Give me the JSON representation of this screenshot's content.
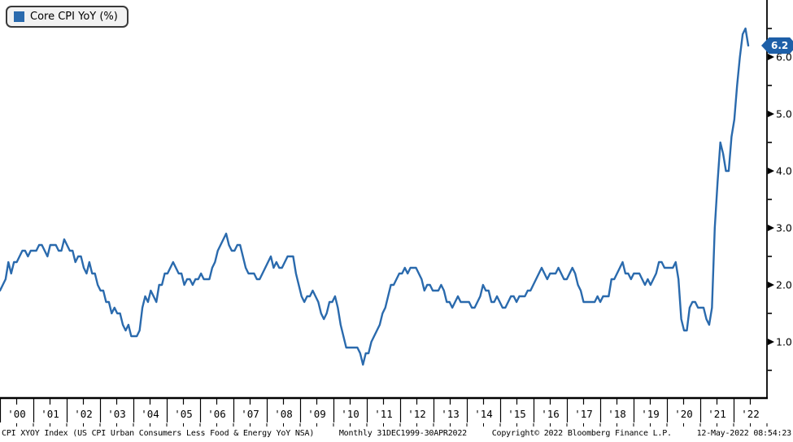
{
  "legend": {
    "label": "Core CPI YoY (%)"
  },
  "last_value_tag": {
    "value": "6.2"
  },
  "colors": {
    "line": "#2a6aad",
    "tag_bg": "#1d5fa8",
    "tag_text": "#ffffff",
    "axis": "#000000",
    "legend_bg": "#f2f2f2"
  },
  "y_axis": {
    "tick_labels": [
      "1.0",
      "2.0",
      "3.0",
      "4.0",
      "5.0",
      "6.0"
    ]
  },
  "x_axis": {
    "year_labels": [
      "'00",
      "'01",
      "'02",
      "'03",
      "'04",
      "'05",
      "'06",
      "'07",
      "'08",
      "'09",
      "'10",
      "'11",
      "'12",
      "'13",
      "'14",
      "'15",
      "'16",
      "'17",
      "'18",
      "'19",
      "'20",
      "'21",
      "'22"
    ]
  },
  "footer": {
    "instrument": "CPI XYOY Index (US CPI Urban Consumers Less Food & Energy YoY NSA)",
    "periodicity": "Monthly 31DEC1999-30APR2022",
    "copyright": "Copyright© 2022 Bloomberg Finance L.P.",
    "timestamp": "12-May-2022 08:54:23"
  },
  "chart_data": {
    "type": "line",
    "title": "Core CPI YoY (%)",
    "frequency": "monthly",
    "x_start": "Dec-1999",
    "x_end": "Apr-2022",
    "ylim": [
      0,
      7
    ],
    "y_ticks": [
      1,
      2,
      3,
      4,
      5,
      6
    ],
    "y_minor_step": 0.5,
    "grid": false,
    "legend_position": "top-left",
    "last_value": 6.2,
    "peak_value": 6.5,
    "series": [
      {
        "name": "Core CPI YoY (%)",
        "values": [
          1.9,
          2.0,
          2.1,
          2.4,
          2.2,
          2.4,
          2.4,
          2.5,
          2.6,
          2.6,
          2.5,
          2.6,
          2.6,
          2.6,
          2.7,
          2.7,
          2.6,
          2.5,
          2.7,
          2.7,
          2.7,
          2.6,
          2.6,
          2.8,
          2.7,
          2.6,
          2.6,
          2.4,
          2.5,
          2.5,
          2.3,
          2.2,
          2.4,
          2.2,
          2.2,
          2.0,
          1.9,
          1.9,
          1.7,
          1.7,
          1.5,
          1.6,
          1.5,
          1.5,
          1.3,
          1.2,
          1.3,
          1.1,
          1.1,
          1.1,
          1.2,
          1.6,
          1.8,
          1.7,
          1.9,
          1.8,
          1.7,
          2.0,
          2.0,
          2.2,
          2.2,
          2.3,
          2.4,
          2.3,
          2.2,
          2.2,
          2.0,
          2.1,
          2.1,
          2.0,
          2.1,
          2.1,
          2.2,
          2.1,
          2.1,
          2.1,
          2.3,
          2.4,
          2.6,
          2.7,
          2.8,
          2.9,
          2.7,
          2.6,
          2.6,
          2.7,
          2.7,
          2.5,
          2.3,
          2.2,
          2.2,
          2.2,
          2.1,
          2.1,
          2.2,
          2.3,
          2.4,
          2.5,
          2.3,
          2.4,
          2.3,
          2.3,
          2.4,
          2.5,
          2.5,
          2.5,
          2.2,
          2.0,
          1.8,
          1.7,
          1.8,
          1.8,
          1.9,
          1.8,
          1.7,
          1.5,
          1.4,
          1.5,
          1.7,
          1.7,
          1.8,
          1.6,
          1.3,
          1.1,
          0.9,
          0.9,
          0.9,
          0.9,
          0.9,
          0.8,
          0.6,
          0.8,
          0.8,
          1.0,
          1.1,
          1.2,
          1.3,
          1.5,
          1.6,
          1.8,
          2.0,
          2.0,
          2.1,
          2.2,
          2.2,
          2.3,
          2.2,
          2.3,
          2.3,
          2.3,
          2.2,
          2.1,
          1.9,
          2.0,
          2.0,
          1.9,
          1.9,
          1.9,
          2.0,
          1.9,
          1.7,
          1.7,
          1.6,
          1.7,
          1.8,
          1.7,
          1.7,
          1.7,
          1.7,
          1.6,
          1.6,
          1.7,
          1.8,
          2.0,
          1.9,
          1.9,
          1.7,
          1.7,
          1.8,
          1.7,
          1.6,
          1.6,
          1.7,
          1.8,
          1.8,
          1.7,
          1.8,
          1.8,
          1.8,
          1.9,
          1.9,
          2.0,
          2.1,
          2.2,
          2.3,
          2.2,
          2.1,
          2.2,
          2.2,
          2.2,
          2.3,
          2.2,
          2.1,
          2.1,
          2.2,
          2.3,
          2.2,
          2.0,
          1.9,
          1.7,
          1.7,
          1.7,
          1.7,
          1.7,
          1.8,
          1.7,
          1.8,
          1.8,
          1.8,
          2.1,
          2.1,
          2.2,
          2.3,
          2.4,
          2.2,
          2.2,
          2.1,
          2.2,
          2.2,
          2.2,
          2.1,
          2.0,
          2.1,
          2.0,
          2.1,
          2.2,
          2.4,
          2.4,
          2.3,
          2.3,
          2.3,
          2.3,
          2.4,
          2.1,
          1.4,
          1.2,
          1.2,
          1.6,
          1.7,
          1.7,
          1.6,
          1.6,
          1.6,
          1.4,
          1.3,
          1.6,
          3.0,
          3.8,
          4.5,
          4.3,
          4.0,
          4.0,
          4.6,
          4.9,
          5.5,
          6.0,
          6.4,
          6.5,
          6.2
        ]
      }
    ]
  }
}
